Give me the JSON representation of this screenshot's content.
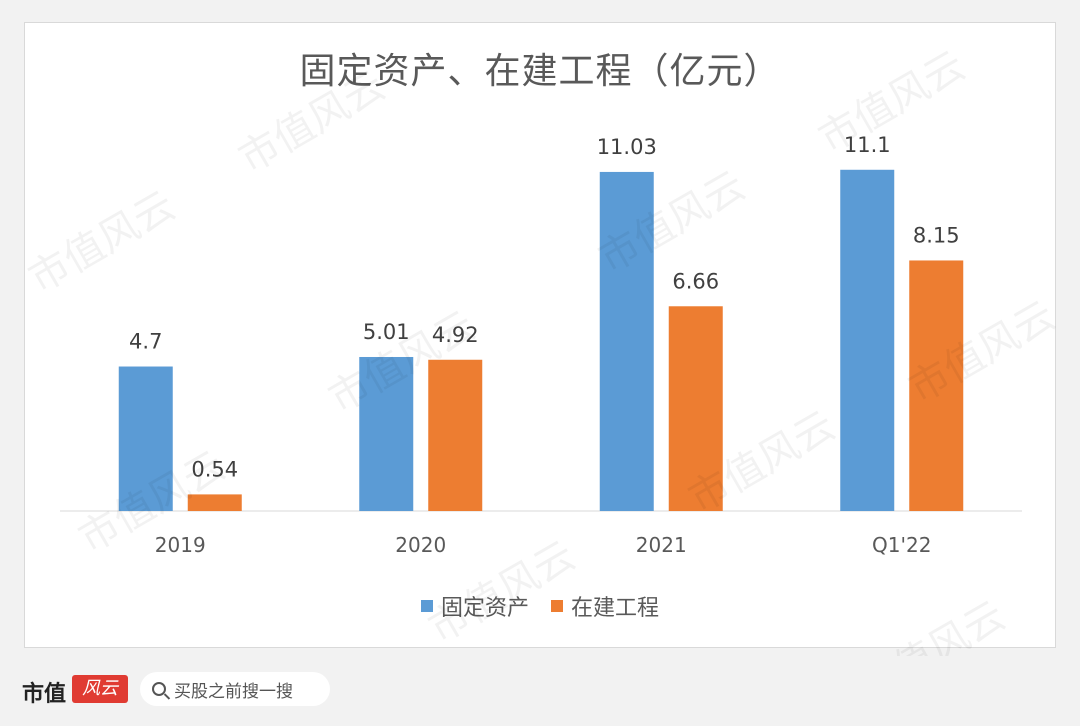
{
  "chart_data": {
    "type": "bar",
    "title": "固定资产、在建工程（亿元）",
    "categories": [
      "2019",
      "2020",
      "2021",
      "Q1'22"
    ],
    "series": [
      {
        "name": "固定资产",
        "color": "#5b9bd5",
        "values": [
          4.7,
          5.01,
          11.03,
          11.1
        ]
      },
      {
        "name": "在建工程",
        "color": "#ed7d31",
        "values": [
          0.54,
          4.92,
          6.66,
          8.15
        ]
      }
    ],
    "value_labels": [
      [
        "4.7",
        "5.01",
        "11.03",
        "11.1"
      ],
      [
        "0.54",
        "4.92",
        "6.66",
        "8.15"
      ]
    ],
    "ylim": [
      0,
      13.5
    ],
    "grid": false,
    "legend": "bottom"
  },
  "watermark_text": "市值风云",
  "footer": {
    "brand": "市值",
    "brand_mark": "风云",
    "search_placeholder": "买股之前搜一搜"
  }
}
